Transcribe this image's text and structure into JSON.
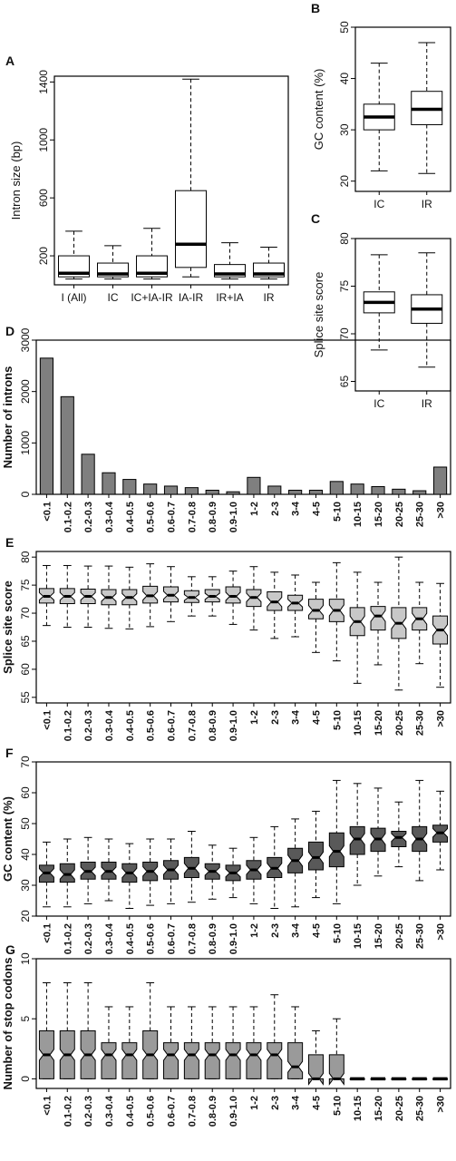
{
  "panel_labels": {
    "A": "A",
    "B": "B",
    "C": "C",
    "D": "D",
    "E": "E",
    "F": "F",
    "G": "G"
  },
  "bin_categories": [
    "<0.1",
    "0.1-0.2",
    "0.2-0.3",
    "0.3-0.4",
    "0.4-0.5",
    "0.5-0.6",
    "0.6-0.7",
    "0.7-0.8",
    "0.8-0.9",
    "0.9-1.0",
    "1-2",
    "2-3",
    "3-4",
    "4-5",
    "5-10",
    "10-15",
    "15-20",
    "20-25",
    "25-30",
    ">30"
  ],
  "chart_data": [
    {
      "id": "A",
      "type": "boxplot",
      "ylabel": "Intron size (bp)",
      "ylim": [
        0,
        1400
      ],
      "yticks": [
        200,
        600,
        1000,
        1400
      ],
      "categories": [
        "I (All)",
        "IC",
        "IC+IA-IR",
        "IA-IR",
        "IR+IA",
        "IR"
      ],
      "boxes": [
        {
          "whislo": 40,
          "q1": 55,
          "med": 80,
          "q3": 200,
          "whishi": 370
        },
        {
          "whislo": 40,
          "q1": 55,
          "med": 75,
          "q3": 150,
          "whishi": 270
        },
        {
          "whislo": 40,
          "q1": 55,
          "med": 80,
          "q3": 200,
          "whishi": 390
        },
        {
          "whislo": 55,
          "q1": 120,
          "med": 280,
          "q3": 650,
          "whishi": 1420
        },
        {
          "whislo": 40,
          "q1": 55,
          "med": 75,
          "q3": 140,
          "whishi": 290
        },
        {
          "whislo": 40,
          "q1": 55,
          "med": 75,
          "q3": 150,
          "whishi": 260
        }
      ]
    },
    {
      "id": "B",
      "type": "boxplot",
      "ylabel": "GC content (%)",
      "ylim": [
        20,
        50
      ],
      "yticks": [
        20,
        30,
        40,
        50
      ],
      "categories": [
        "IC",
        "IR"
      ],
      "boxes": [
        {
          "whislo": 22,
          "q1": 30,
          "med": 32.5,
          "q3": 35,
          "whishi": 43
        },
        {
          "whislo": 21.5,
          "q1": 31,
          "med": 34,
          "q3": 37.5,
          "whishi": 47
        }
      ]
    },
    {
      "id": "C",
      "type": "boxplot",
      "ylabel": "Splice site score",
      "ylim": [
        65,
        80
      ],
      "yticks": [
        65,
        70,
        75,
        80
      ],
      "categories": [
        "IC",
        "IR"
      ],
      "boxes": [
        {
          "whislo": 68.3,
          "q1": 72.2,
          "med": 73.3,
          "q3": 74.4,
          "whishi": 78.3
        },
        {
          "whislo": 66.5,
          "q1": 71.1,
          "med": 72.6,
          "q3": 74.1,
          "whishi": 78.5
        }
      ]
    },
    {
      "id": "D",
      "type": "bar",
      "ylabel": "Number of introns",
      "ylim": [
        0,
        3000
      ],
      "yticks": [
        0,
        1000,
        2000,
        3000
      ],
      "values": [
        2650,
        1900,
        780,
        420,
        290,
        200,
        160,
        130,
        80,
        50,
        330,
        160,
        80,
        80,
        250,
        200,
        150,
        100,
        70,
        530
      ]
    },
    {
      "id": "E",
      "type": "boxplot",
      "notched": true,
      "ylabel": "Splice site score",
      "ylim": [
        55,
        80
      ],
      "yticks": [
        55,
        60,
        65,
        70,
        75,
        80
      ],
      "boxes": [
        {
          "whislo": 67.8,
          "q1": 71.8,
          "med": 73,
          "q3": 74.4,
          "whishi": 78.5
        },
        {
          "whislo": 67.5,
          "q1": 71.7,
          "med": 73,
          "q3": 74.4,
          "whishi": 78.5
        },
        {
          "whislo": 67.5,
          "q1": 71.7,
          "med": 73,
          "q3": 74.3,
          "whishi": 78.4
        },
        {
          "whislo": 67.3,
          "q1": 71.5,
          "med": 72.8,
          "q3": 74.2,
          "whishi": 78.4
        },
        {
          "whislo": 67.2,
          "q1": 71.5,
          "med": 72.8,
          "q3": 74.2,
          "whishi": 78.2
        },
        {
          "whislo": 67.6,
          "q1": 71.8,
          "med": 73.1,
          "q3": 74.8,
          "whishi": 78.8
        },
        {
          "whislo": 68.5,
          "q1": 72,
          "med": 73.2,
          "q3": 74.7,
          "whishi": 78.3
        },
        {
          "whislo": 69.5,
          "q1": 71.9,
          "med": 72.8,
          "q3": 74,
          "whishi": 76.5
        },
        {
          "whislo": 69.5,
          "q1": 72,
          "med": 73,
          "q3": 74.2,
          "whishi": 76.5
        },
        {
          "whislo": 68,
          "q1": 71.8,
          "med": 73,
          "q3": 74.7,
          "whishi": 77.5
        },
        {
          "whislo": 67,
          "q1": 71.2,
          "med": 72.8,
          "q3": 74.2,
          "whishi": 78.3
        },
        {
          "whislo": 65.5,
          "q1": 70.5,
          "med": 72,
          "q3": 73.8,
          "whishi": 77.3
        },
        {
          "whislo": 65.8,
          "q1": 70.5,
          "med": 71.8,
          "q3": 73.2,
          "whishi": 76.8
        },
        {
          "whislo": 63,
          "q1": 69,
          "med": 70.5,
          "q3": 72.5,
          "whishi": 75.5
        },
        {
          "whislo": 61.5,
          "q1": 68.5,
          "med": 70.5,
          "q3": 72.5,
          "whishi": 79
        },
        {
          "whislo": 57.5,
          "q1": 66,
          "med": 68.5,
          "q3": 71,
          "whishi": 77.3
        },
        {
          "whislo": 60.8,
          "q1": 67,
          "med": 69.5,
          "q3": 71.2,
          "whishi": 75.5
        },
        {
          "whislo": 56.3,
          "q1": 65.5,
          "med": 68.2,
          "q3": 71,
          "whishi": 80
        },
        {
          "whislo": 61,
          "q1": 67,
          "med": 69,
          "q3": 71,
          "whishi": 75.5
        },
        {
          "whislo": 56.8,
          "q1": 64.5,
          "med": 67,
          "q3": 69.5,
          "whishi": 75.3
        }
      ]
    },
    {
      "id": "F",
      "type": "boxplot",
      "notched": true,
      "ylabel": "GC content (%)",
      "ylim": [
        20,
        70
      ],
      "yticks": [
        20,
        30,
        40,
        50,
        60,
        70
      ],
      "boxes": [
        {
          "whislo": 23,
          "q1": 31,
          "med": 34,
          "q3": 36.5,
          "whishi": 44
        },
        {
          "whislo": 23,
          "q1": 31,
          "med": 33.5,
          "q3": 37,
          "whishi": 45
        },
        {
          "whislo": 24,
          "q1": 32,
          "med": 34.5,
          "q3": 37.5,
          "whishi": 45.5
        },
        {
          "whislo": 25,
          "q1": 32,
          "med": 34.5,
          "q3": 37.5,
          "whishi": 45
        },
        {
          "whislo": 22.5,
          "q1": 31,
          "med": 34,
          "q3": 37,
          "whishi": 43.5
        },
        {
          "whislo": 23.5,
          "q1": 31.5,
          "med": 34.5,
          "q3": 37.5,
          "whishi": 45
        },
        {
          "whislo": 24,
          "q1": 32,
          "med": 35,
          "q3": 38,
          "whishi": 45
        },
        {
          "whislo": 24.5,
          "q1": 32.5,
          "med": 35.5,
          "q3": 39,
          "whishi": 47.5
        },
        {
          "whislo": 25.5,
          "q1": 32,
          "med": 34.5,
          "q3": 37,
          "whishi": 43
        },
        {
          "whislo": 26,
          "q1": 31.5,
          "med": 34,
          "q3": 36.5,
          "whishi": 42
        },
        {
          "whislo": 24,
          "q1": 32,
          "med": 35,
          "q3": 38,
          "whishi": 45.5
        },
        {
          "whislo": 22.5,
          "q1": 32.5,
          "med": 35.5,
          "q3": 39,
          "whishi": 49
        },
        {
          "whislo": 23,
          "q1": 34,
          "med": 38,
          "q3": 42,
          "whishi": 51.5
        },
        {
          "whislo": 26,
          "q1": 35,
          "med": 39,
          "q3": 44,
          "whishi": 54
        },
        {
          "whislo": 24,
          "q1": 36,
          "med": 41,
          "q3": 47,
          "whishi": 64
        },
        {
          "whislo": 30,
          "q1": 40,
          "med": 45,
          "q3": 49,
          "whishi": 63
        },
        {
          "whislo": 33,
          "q1": 41,
          "med": 45,
          "q3": 48.5,
          "whishi": 61.5
        },
        {
          "whislo": 36,
          "q1": 42.5,
          "med": 45.5,
          "q3": 47.5,
          "whishi": 57
        },
        {
          "whislo": 31.5,
          "q1": 41,
          "med": 45,
          "q3": 49,
          "whishi": 64
        },
        {
          "whislo": 35,
          "q1": 44,
          "med": 47,
          "q3": 49.5,
          "whishi": 60.5
        }
      ]
    },
    {
      "id": "G",
      "type": "boxplot",
      "notched": true,
      "ylabel": "Number of stop codons",
      "ylim": [
        0,
        10
      ],
      "yticks": [
        0,
        5,
        10
      ],
      "boxes": [
        {
          "whislo": 0,
          "q1": 0,
          "med": 2,
          "q3": 4,
          "whishi": 8
        },
        {
          "whislo": 0,
          "q1": 0,
          "med": 2,
          "q3": 4,
          "whishi": 8
        },
        {
          "whislo": 0,
          "q1": 0,
          "med": 2,
          "q3": 4,
          "whishi": 8
        },
        {
          "whislo": 0,
          "q1": 0,
          "med": 2,
          "q3": 3,
          "whishi": 6
        },
        {
          "whislo": 0,
          "q1": 0,
          "med": 2,
          "q3": 3,
          "whishi": 6
        },
        {
          "whislo": 0,
          "q1": 0,
          "med": 2,
          "q3": 4,
          "whishi": 8
        },
        {
          "whislo": 0,
          "q1": 0,
          "med": 2,
          "q3": 3,
          "whishi": 6
        },
        {
          "whislo": 0,
          "q1": 0,
          "med": 2,
          "q3": 3,
          "whishi": 6
        },
        {
          "whislo": 0,
          "q1": 0,
          "med": 2,
          "q3": 3,
          "whishi": 6
        },
        {
          "whislo": 0,
          "q1": 0,
          "med": 2,
          "q3": 3,
          "whishi": 6
        },
        {
          "whislo": 0,
          "q1": 0,
          "med": 2,
          "q3": 3,
          "whishi": 6
        },
        {
          "whislo": 0,
          "q1": 0,
          "med": 2,
          "q3": 3,
          "whishi": 7
        },
        {
          "whislo": 0,
          "q1": 0,
          "med": 1,
          "q3": 3,
          "whishi": 6
        },
        {
          "whislo": 0,
          "q1": 0,
          "med": 0,
          "q3": 2,
          "whishi": 4
        },
        {
          "whislo": 0,
          "q1": 0,
          "med": 0,
          "q3": 2,
          "whishi": 5
        },
        {
          "whislo": 0,
          "q1": 0,
          "med": 0,
          "q3": 0,
          "whishi": 0
        },
        {
          "whislo": 0,
          "q1": 0,
          "med": 0,
          "q3": 0,
          "whishi": 0
        },
        {
          "whislo": 0,
          "q1": 0,
          "med": 0,
          "q3": 0,
          "whishi": 0
        },
        {
          "whislo": 0,
          "q1": 0,
          "med": 0,
          "q3": 0,
          "whishi": 0
        },
        {
          "whislo": 0,
          "q1": 0,
          "med": 0,
          "q3": 0,
          "whishi": 0
        }
      ]
    }
  ],
  "colors": {
    "bar_fill": "#7f7f7f",
    "box_light": "#c8c8c8",
    "box_dark": "#595959",
    "box_mid": "#9a9a9a",
    "box_white": "#ffffff",
    "axis": "#000000"
  }
}
